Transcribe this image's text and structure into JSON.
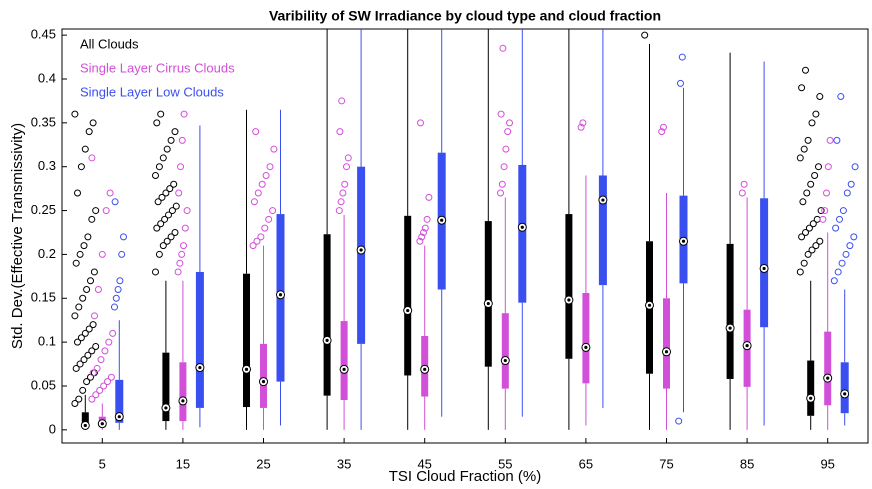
{
  "chart_data": {
    "type": "box",
    "title": "Varibility of SW Irradiance by cloud type and cloud fraction",
    "x_label": "TSI Cloud Fraction (%)",
    "y_label": "Std. Dev.(Effective Transmissivity)",
    "categories": [
      "5",
      "15",
      "25",
      "35",
      "45",
      "55",
      "65",
      "75",
      "85",
      "95"
    ],
    "ylim": [
      -0.015,
      0.457
    ],
    "yticks": [
      0,
      0.05,
      0.1,
      0.15,
      0.2,
      0.25,
      0.3,
      0.35,
      0.4,
      0.45
    ],
    "legend": "top-left",
    "series": [
      {
        "name": "All Clouds",
        "color": "#000000",
        "boxes": [
          {
            "min": 0,
            "q1": 0.003,
            "median": 0.005,
            "q3": 0.02,
            "max": 0.04,
            "outliers": [
              0.03,
              0.035,
              0.045,
              0.055,
              0.06,
              0.065,
              0.07,
              0.075,
              0.08,
              0.085,
              0.09,
              0.095,
              0.1,
              0.105,
              0.11,
              0.115,
              0.12,
              0.13,
              0.14,
              0.15,
              0.16,
              0.17,
              0.18,
              0.19,
              0.2,
              0.21,
              0.22,
              0.24,
              0.25,
              0.27,
              0.3,
              0.32,
              0.34,
              0.35,
              0.36
            ]
          },
          {
            "min": 0,
            "q1": 0.01,
            "median": 0.025,
            "q3": 0.088,
            "max": 0.17,
            "outliers": [
              0.18,
              0.2,
              0.21,
              0.215,
              0.22,
              0.225,
              0.23,
              0.235,
              0.24,
              0.245,
              0.25,
              0.255,
              0.26,
              0.265,
              0.27,
              0.275,
              0.28,
              0.29,
              0.3,
              0.31,
              0.32,
              0.33,
              0.34,
              0.35,
              0.36
            ]
          },
          {
            "min": 0,
            "q1": 0.026,
            "median": 0.069,
            "q3": 0.178,
            "max": 0.365,
            "outliers": []
          },
          {
            "min": 0,
            "q1": 0.039,
            "median": 0.102,
            "q3": 0.223,
            "max": 0.457,
            "outliers": []
          },
          {
            "min": 0,
            "q1": 0.062,
            "median": 0.136,
            "q3": 0.244,
            "max": 0.457,
            "outliers": []
          },
          {
            "min": 0,
            "q1": 0.072,
            "median": 0.144,
            "q3": 0.238,
            "max": 0.457,
            "outliers": []
          },
          {
            "min": 0,
            "q1": 0.081,
            "median": 0.148,
            "q3": 0.246,
            "max": 0.457,
            "outliers": []
          },
          {
            "min": 0,
            "q1": 0.064,
            "median": 0.142,
            "q3": 0.215,
            "max": 0.44,
            "outliers": [
              0.45
            ]
          },
          {
            "min": 0,
            "q1": 0.058,
            "median": 0.116,
            "q3": 0.212,
            "max": 0.43,
            "outliers": []
          },
          {
            "min": 0,
            "q1": 0.016,
            "median": 0.036,
            "q3": 0.079,
            "max": 0.17,
            "outliers": [
              0.18,
              0.19,
              0.2,
              0.205,
              0.21,
              0.215,
              0.22,
              0.225,
              0.23,
              0.235,
              0.24,
              0.25,
              0.26,
              0.27,
              0.28,
              0.29,
              0.3,
              0.31,
              0.32,
              0.33,
              0.35,
              0.36,
              0.38,
              0.39,
              0.41
            ]
          }
        ]
      },
      {
        "name": "Single Layer Cirrus Clouds",
        "color": "#d24fd8",
        "boxes": [
          {
            "min": 0,
            "q1": 0.003,
            "median": 0.007,
            "q3": 0.015,
            "max": 0.03,
            "outliers": [
              0.035,
              0.04,
              0.045,
              0.05,
              0.055,
              0.06,
              0.065,
              0.07,
              0.08,
              0.09,
              0.1,
              0.11,
              0.13,
              0.16,
              0.2,
              0.25,
              0.27,
              0.31
            ]
          },
          {
            "min": 0,
            "q1": 0.01,
            "median": 0.033,
            "q3": 0.077,
            "max": 0.17,
            "outliers": [
              0.18,
              0.19,
              0.2,
              0.21,
              0.23,
              0.25,
              0.27,
              0.3,
              0.33,
              0.36
            ]
          },
          {
            "min": 0,
            "q1": 0.025,
            "median": 0.055,
            "q3": 0.098,
            "max": 0.21,
            "outliers": [
              0.21,
              0.215,
              0.22,
              0.23,
              0.24,
              0.25,
              0.26,
              0.27,
              0.28,
              0.29,
              0.3,
              0.32,
              0.34
            ]
          },
          {
            "min": 0,
            "q1": 0.034,
            "median": 0.069,
            "q3": 0.124,
            "max": 0.245,
            "outliers": [
              0.25,
              0.26,
              0.27,
              0.28,
              0.3,
              0.31,
              0.34,
              0.375
            ]
          },
          {
            "min": 0,
            "q1": 0.038,
            "median": 0.069,
            "q3": 0.107,
            "max": 0.21,
            "outliers": [
              0.215,
              0.22,
              0.225,
              0.23,
              0.24,
              0.265,
              0.35
            ]
          },
          {
            "min": 0,
            "q1": 0.047,
            "median": 0.079,
            "q3": 0.133,
            "max": 0.265,
            "outliers": [
              0.27,
              0.28,
              0.3,
              0.32,
              0.34,
              0.35,
              0.36,
              0.435
            ]
          },
          {
            "min": 0.005,
            "q1": 0.053,
            "median": 0.094,
            "q3": 0.156,
            "max": 0.29,
            "outliers": [
              0.345,
              0.35
            ]
          },
          {
            "min": 0,
            "q1": 0.047,
            "median": 0.089,
            "q3": 0.15,
            "max": 0.27,
            "outliers": [
              0.34,
              0.345
            ]
          },
          {
            "min": 0,
            "q1": 0.049,
            "median": 0.096,
            "q3": 0.137,
            "max": 0.265,
            "outliers": [
              0.27,
              0.28
            ]
          },
          {
            "min": 0,
            "q1": 0.028,
            "median": 0.059,
            "q3": 0.112,
            "max": 0.225,
            "outliers": [
              0.24,
              0.25,
              0.27,
              0.3,
              0.33
            ]
          }
        ]
      },
      {
        "name": "Single Layer Low Clouds",
        "color": "#3a4ff0",
        "boxes": [
          {
            "min": 0,
            "q1": 0.008,
            "median": 0.015,
            "q3": 0.057,
            "max": 0.125,
            "outliers": [
              0.14,
              0.15,
              0.16,
              0.17,
              0.2,
              0.22,
              0.26
            ]
          },
          {
            "min": 0.003,
            "q1": 0.025,
            "median": 0.071,
            "q3": 0.18,
            "max": 0.347,
            "outliers": []
          },
          {
            "min": 0.005,
            "q1": 0.055,
            "median": 0.154,
            "q3": 0.246,
            "max": 0.365,
            "outliers": []
          },
          {
            "min": 0,
            "q1": 0.098,
            "median": 0.205,
            "q3": 0.3,
            "max": 0.457,
            "outliers": []
          },
          {
            "min": 0.015,
            "q1": 0.16,
            "median": 0.239,
            "q3": 0.316,
            "max": 0.457,
            "outliers": []
          },
          {
            "min": 0.015,
            "q1": 0.145,
            "median": 0.231,
            "q3": 0.302,
            "max": 0.457,
            "outliers": []
          },
          {
            "min": 0.025,
            "q1": 0.165,
            "median": 0.262,
            "q3": 0.29,
            "max": 0.457,
            "outliers": []
          },
          {
            "min": 0.02,
            "q1": 0.167,
            "median": 0.215,
            "q3": 0.267,
            "max": 0.39,
            "outliers": [
              0.01,
              0.395,
              0.425
            ]
          },
          {
            "min": 0.005,
            "q1": 0.117,
            "median": 0.184,
            "q3": 0.264,
            "max": 0.42,
            "outliers": []
          },
          {
            "min": 0.005,
            "q1": 0.019,
            "median": 0.041,
            "q3": 0.077,
            "max": 0.16,
            "outliers": [
              0.17,
              0.18,
              0.19,
              0.2,
              0.21,
              0.22,
              0.23,
              0.24,
              0.25,
              0.27,
              0.28,
              0.3,
              0.33,
              0.38
            ]
          }
        ]
      }
    ]
  }
}
